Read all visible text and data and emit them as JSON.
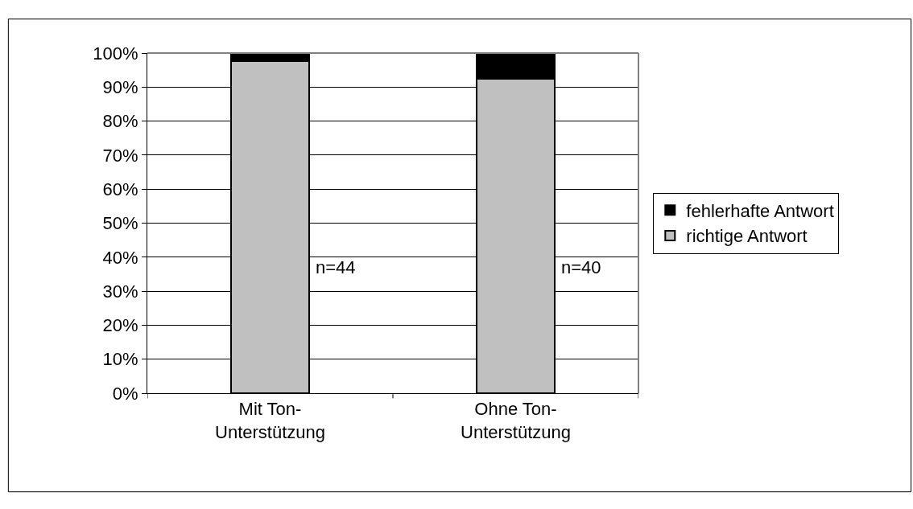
{
  "chart_data": {
    "type": "bar",
    "stacked": true,
    "categories": [
      "Mit Ton-\nUnterstützung",
      "Ohne Ton-\nUnterstützung"
    ],
    "series": [
      {
        "name": "richtige Antwort",
        "color": "#c0c0c0",
        "values": [
          97.7,
          92.5
        ]
      },
      {
        "name": "fehlerhafte Antwort",
        "color": "#000000",
        "values": [
          2.3,
          7.5
        ]
      }
    ],
    "ylim": [
      0,
      100
    ],
    "yticks": [
      {
        "value": 0,
        "label": "0%"
      },
      {
        "value": 10,
        "label": "10%"
      },
      {
        "value": 20,
        "label": "20%"
      },
      {
        "value": 30,
        "label": "30%"
      },
      {
        "value": 40,
        "label": "40%"
      },
      {
        "value": 50,
        "label": "50%"
      },
      {
        "value": 60,
        "label": "60%"
      },
      {
        "value": 70,
        "label": "70%"
      },
      {
        "value": 80,
        "label": "80%"
      },
      {
        "value": 90,
        "label": "90%"
      },
      {
        "value": 100,
        "label": "100%"
      }
    ],
    "annotations": [
      "n=44",
      "n=40"
    ],
    "grid": "y",
    "legend": "right"
  }
}
